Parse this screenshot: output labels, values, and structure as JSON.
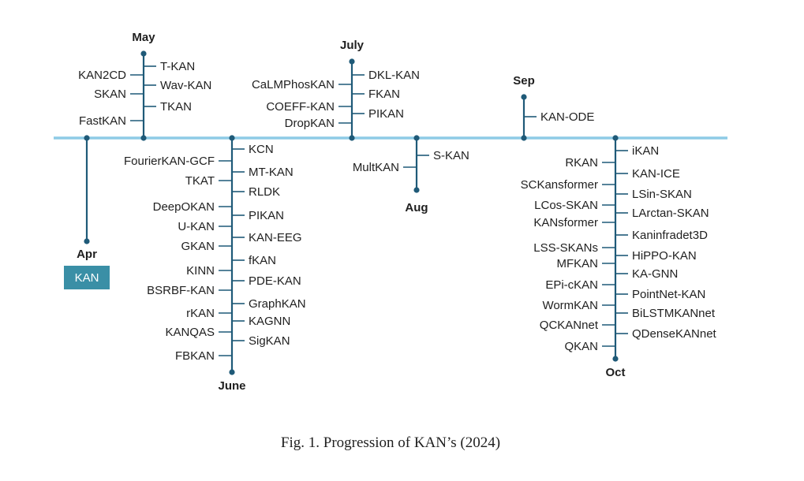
{
  "timeline": {
    "root_label": "KAN",
    "months": [
      {
        "name": "Apr",
        "left": [],
        "right": []
      },
      {
        "name": "May",
        "left": [
          "KAN2CD",
          "SKAN",
          "FastKAN"
        ],
        "right": [
          "T-KAN",
          "Wav-KAN",
          "TKAN"
        ]
      },
      {
        "name": "June",
        "left": [
          "FourierKAN-GCF",
          "TKAT",
          "DeepOKAN",
          "U-KAN",
          "GKAN",
          "KINN",
          "BSRBF-KAN",
          "rKAN",
          "KANQAS",
          "FBKAN"
        ],
        "right": [
          "KCN",
          "MT-KAN",
          "RLDK",
          "PIKAN",
          "KAN-EEG",
          "fKAN",
          "PDE-KAN",
          "GraphKAN",
          "KAGNN",
          "SigKAN"
        ]
      },
      {
        "name": "July",
        "left": [
          "CaLMPhosKAN",
          "COEFF-KAN",
          "DropKAN"
        ],
        "right": [
          "DKL-KAN",
          "FKAN",
          "PIKAN"
        ]
      },
      {
        "name": "Aug",
        "left": [
          "MultKAN"
        ],
        "right": [
          "S-KAN"
        ]
      },
      {
        "name": "Sep",
        "left": [],
        "right": [
          "KAN-ODE"
        ]
      },
      {
        "name": "Oct",
        "left": [
          "RKAN",
          "SCKansformer",
          "LCos-SKAN",
          "KANsformer",
          "LSS-SKANs",
          "MFKAN",
          "EPi-cKAN",
          "WormKAN",
          "QCKANnet",
          "QKAN"
        ],
        "right": [
          "iKAN",
          "KAN-ICE",
          "LSin-SKAN",
          "LArctan-SKAN",
          "Kaninfradet3D",
          "HiPPO-KAN",
          "KA-GNN",
          "PointNet-KAN",
          "BiLSTMKANnet",
          "QDenseKANnet"
        ]
      }
    ]
  },
  "caption": "Fig. 1.  Progression of KAN’s (2024)",
  "colors": {
    "baseline": "#8ecbe6",
    "stem": "#1f5a78",
    "box": "#3a8fa6",
    "text": "#1f1f1f"
  }
}
